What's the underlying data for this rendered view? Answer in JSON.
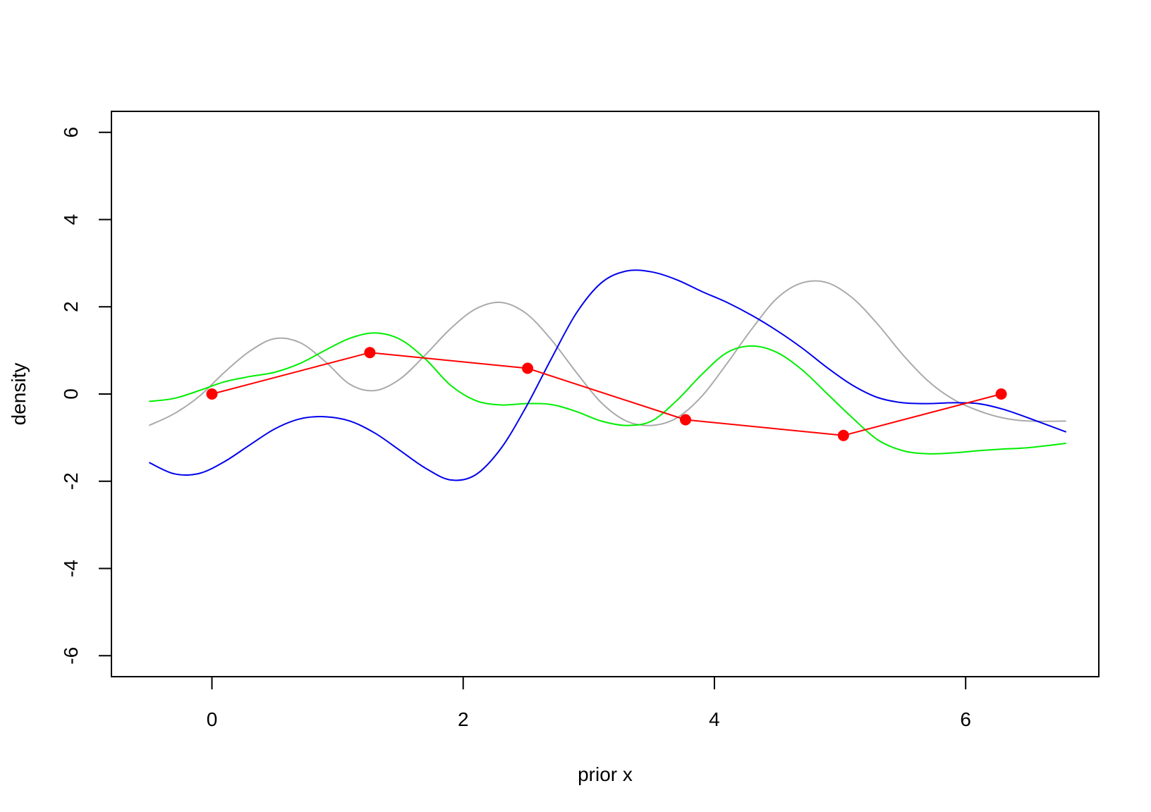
{
  "chart_data": {
    "type": "line",
    "title": "",
    "xlabel": "prior x",
    "ylabel": "density",
    "xlim": [
      -0.8,
      7.06
    ],
    "ylim": [
      -6.48,
      6.48
    ],
    "xticks": [
      0,
      2,
      4,
      6
    ],
    "yticks": [
      -6,
      -4,
      -2,
      0,
      2,
      4,
      6
    ],
    "grid": false,
    "legend": "none",
    "series": [
      {
        "name": "",
        "color": "#aaaaaa",
        "x": [
          -0.5,
          -0.3,
          -0.1,
          0.1,
          0.3,
          0.5,
          0.7,
          0.9,
          1.1,
          1.3,
          1.5,
          1.7,
          1.9,
          2.1,
          2.3,
          2.5,
          2.7,
          2.9,
          3.1,
          3.3,
          3.5,
          3.7,
          3.9,
          4.1,
          4.3,
          4.5,
          4.7,
          4.9,
          5.1,
          5.3,
          5.5,
          5.7,
          5.9,
          6.1,
          6.3,
          6.5,
          6.8
        ],
        "y": [
          -0.72,
          -0.45,
          -0.05,
          0.5,
          0.98,
          1.27,
          1.18,
          0.75,
          0.22,
          0.08,
          0.35,
          0.9,
          1.5,
          1.95,
          2.1,
          1.85,
          1.25,
          0.5,
          -0.2,
          -0.62,
          -0.72,
          -0.55,
          -0.05,
          0.7,
          1.5,
          2.2,
          2.55,
          2.55,
          2.2,
          1.6,
          0.9,
          0.3,
          -0.12,
          -0.38,
          -0.55,
          -0.62,
          -0.62
        ]
      },
      {
        "name": "",
        "color": "#00ee00",
        "x": [
          -0.5,
          -0.3,
          -0.1,
          0.1,
          0.3,
          0.5,
          0.7,
          0.9,
          1.1,
          1.3,
          1.5,
          1.7,
          1.9,
          2.1,
          2.3,
          2.5,
          2.7,
          2.9,
          3.1,
          3.3,
          3.5,
          3.7,
          3.9,
          4.1,
          4.3,
          4.5,
          4.7,
          4.9,
          5.1,
          5.3,
          5.5,
          5.7,
          5.9,
          6.1,
          6.3,
          6.5,
          6.8
        ],
        "y": [
          -0.17,
          -0.1,
          0.08,
          0.28,
          0.4,
          0.5,
          0.7,
          1.0,
          1.28,
          1.4,
          1.25,
          0.8,
          0.2,
          -0.15,
          -0.25,
          -0.22,
          -0.24,
          -0.4,
          -0.62,
          -0.72,
          -0.62,
          -0.15,
          0.45,
          0.95,
          1.1,
          0.95,
          0.55,
          0.0,
          -0.55,
          -1.05,
          -1.3,
          -1.37,
          -1.35,
          -1.3,
          -1.26,
          -1.23,
          -1.13
        ]
      },
      {
        "name": "",
        "color": "#0000ee",
        "x": [
          -0.5,
          -0.3,
          -0.1,
          0.1,
          0.3,
          0.5,
          0.7,
          0.9,
          1.1,
          1.3,
          1.5,
          1.7,
          1.9,
          2.1,
          2.3,
          2.5,
          2.7,
          2.9,
          3.1,
          3.3,
          3.5,
          3.7,
          3.9,
          4.1,
          4.3,
          4.5,
          4.7,
          4.9,
          5.1,
          5.3,
          5.5,
          5.7,
          5.9,
          6.1,
          6.3,
          6.5,
          6.8
        ],
        "y": [
          -1.57,
          -1.83,
          -1.82,
          -1.55,
          -1.17,
          -0.8,
          -0.57,
          -0.52,
          -0.62,
          -0.9,
          -1.3,
          -1.7,
          -1.97,
          -1.85,
          -1.25,
          -0.3,
          0.8,
          1.85,
          2.55,
          2.82,
          2.8,
          2.62,
          2.35,
          2.1,
          1.8,
          1.45,
          1.05,
          0.6,
          0.2,
          -0.08,
          -0.2,
          -0.22,
          -0.2,
          -0.22,
          -0.35,
          -0.55,
          -0.87
        ]
      },
      {
        "name": "",
        "color": "#ff0000",
        "markers": true,
        "x": [
          0.0,
          1.257,
          2.513,
          3.77,
          5.027,
          6.283
        ],
        "y": [
          0.0,
          0.95,
          0.59,
          -0.59,
          -0.95,
          0.0
        ]
      }
    ]
  }
}
